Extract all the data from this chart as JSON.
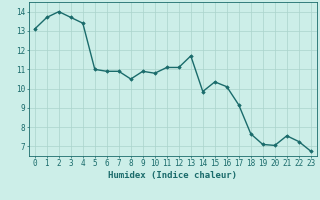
{
  "x": [
    0,
    1,
    2,
    3,
    4,
    5,
    6,
    7,
    8,
    9,
    10,
    11,
    12,
    13,
    14,
    15,
    16,
    17,
    18,
    19,
    20,
    21,
    22,
    23
  ],
  "y": [
    13.1,
    13.7,
    14.0,
    13.7,
    13.4,
    11.0,
    10.9,
    10.9,
    10.5,
    10.9,
    10.8,
    11.1,
    11.1,
    11.7,
    9.85,
    10.35,
    10.1,
    9.15,
    7.65,
    7.1,
    7.05,
    7.55,
    7.25,
    6.75
  ],
  "xlabel": "Humidex (Indice chaleur)",
  "xlim": [
    -0.5,
    23.5
  ],
  "ylim": [
    6.5,
    14.5
  ],
  "yticks": [
    7,
    8,
    9,
    10,
    11,
    12,
    13,
    14
  ],
  "xticks": [
    0,
    1,
    2,
    3,
    4,
    5,
    6,
    7,
    8,
    9,
    10,
    11,
    12,
    13,
    14,
    15,
    16,
    17,
    18,
    19,
    20,
    21,
    22,
    23
  ],
  "line_color": "#1a6b6b",
  "marker": "D",
  "marker_size": 1.8,
  "bg_color": "#cceee8",
  "grid_color": "#aad4cc",
  "axis_color": "#1a6b6b",
  "xlabel_fontsize": 6.5,
  "tick_fontsize": 5.5,
  "line_width": 1.0
}
